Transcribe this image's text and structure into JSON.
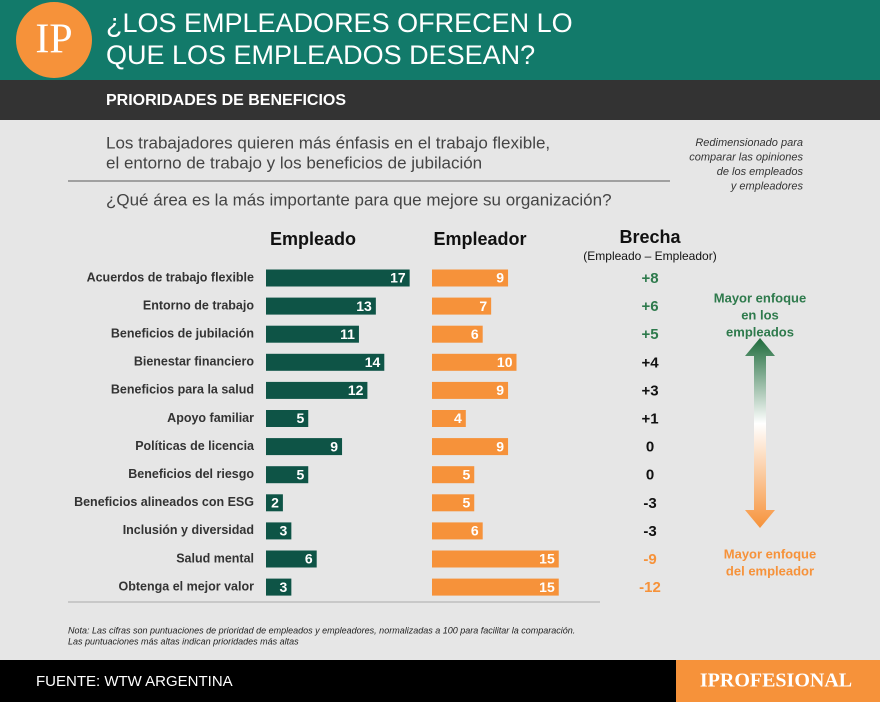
{
  "header": {
    "logo": "IP",
    "title_lines": [
      "¿LOS EMPLEADORES OFRECEN LO",
      "QUE LOS EMPLEADOS DESEAN?"
    ],
    "section": "PRIORIDADES DE BENEFICIOS"
  },
  "subtitle_lines": [
    "Los trabajadores quieren más énfasis en el trabajo flexible,",
    "el entorno de trabajo y los beneficios de jubilación"
  ],
  "question": "¿Qué área es la más importante para que mejore su organización?",
  "side_note_lines": [
    "Redimensionado para",
    "comparar las opiniones",
    "de los empleados",
    "y empleadores"
  ],
  "chart_data": {
    "type": "bar",
    "orientation": "horizontal",
    "categories": [
      "Acuerdos de trabajo flexible",
      "Entorno de trabajo",
      "Beneficios de jubilación",
      "Bienestar financiero",
      "Beneficios para la salud",
      "Apoyo familiar",
      "Políticas de licencia",
      "Beneficios del riesgo",
      "Beneficios alineados con ESG",
      "Inclusión y diversidad",
      "Salud mental",
      "Obtenga el mejor valor"
    ],
    "series": [
      {
        "name": "Empleado",
        "color": "#0e5446",
        "values": [
          17,
          13,
          11,
          14,
          12,
          5,
          9,
          5,
          2,
          3,
          6,
          3
        ]
      },
      {
        "name": "Empleador",
        "color": "#f6923a",
        "values": [
          9,
          7,
          6,
          10,
          9,
          4,
          9,
          5,
          5,
          6,
          15,
          15
        ]
      }
    ],
    "gap": {
      "title": "Brecha",
      "subtitle": "(Empleado – Empleador)",
      "values": [
        8,
        6,
        5,
        4,
        3,
        1,
        0,
        0,
        -3,
        -3,
        -9,
        -12
      ],
      "value_labels": [
        "+8",
        "+6",
        "+5",
        "+4",
        "+3",
        "+1",
        "0",
        "0",
        "-3",
        "-3",
        "-9",
        "-12"
      ],
      "colors": [
        "#2e7a4c",
        "#2e7a4c",
        "#2e7a4c",
        "#111111",
        "#111111",
        "#111111",
        "#111111",
        "#111111",
        "#111111",
        "#111111",
        "#f6923a",
        "#f6923a"
      ]
    }
  },
  "legend": {
    "top_lines": [
      "Mayor enfoque",
      "en los",
      "empleados"
    ],
    "bottom_lines": [
      "Mayor enfoque",
      "del empleador"
    ]
  },
  "note_lines": [
    "Nota: Las cifras son puntuaciones de prioridad de empleados y empleadores, normalizadas a 100 para facilitar la comparación.",
    "Las puntuaciones más altas indican prioridades más altas"
  ],
  "footer": {
    "source": "FUENTE: WTW ARGENTINA",
    "brand": "IPROFESIONAL"
  }
}
